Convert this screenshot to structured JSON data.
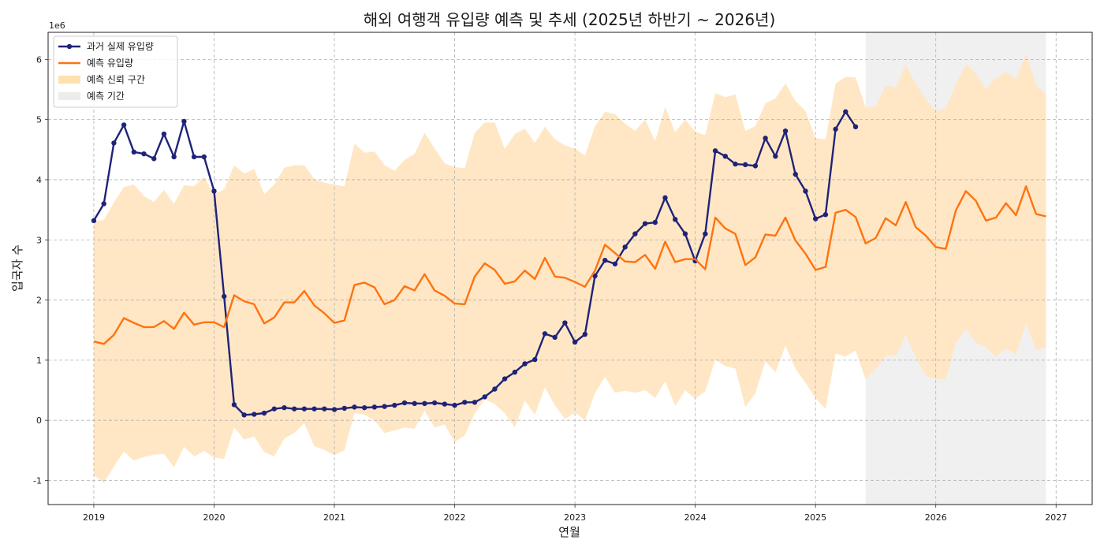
{
  "chart_data": {
    "type": "line",
    "title": "해외 여행객 유입량 예측 및 추세 (2025년 하반기 ~ 2026년)",
    "xlabel": "연월",
    "ylabel": "입국자 수",
    "y_multiplier": "1e6",
    "ylim": [
      -1.4,
      6.45
    ],
    "xlim": [
      2018.62,
      2027.3
    ],
    "y_ticks": [
      -1,
      0,
      1,
      2,
      3,
      4,
      5,
      6
    ],
    "y_tick_labels": [
      "-1",
      "0",
      "1",
      "2",
      "3",
      "4",
      "5",
      "6"
    ],
    "x_ticks": [
      2019,
      2020,
      2021,
      2022,
      2023,
      2024,
      2025,
      2026,
      2027
    ],
    "x_tick_labels": [
      "2019",
      "2020",
      "2021",
      "2022",
      "2023",
      "2024",
      "2025",
      "2026",
      "2027"
    ],
    "grid": true,
    "legend_position": "top-left",
    "legend": [
      "과거 실제 유입량",
      "예측 유입량",
      "예측 신뢰 구간",
      "예측 기간"
    ],
    "forecast_period": [
      "2025-06",
      "2026-12"
    ],
    "x_start": "2019-01",
    "series": [
      {
        "name": "과거 실제 유입량",
        "color": "#1f2378",
        "values": [
          3.32,
          3.6,
          4.61,
          4.91,
          4.46,
          4.43,
          4.35,
          4.76,
          4.38,
          4.97,
          4.38,
          4.38,
          3.81,
          2.06,
          0.26,
          0.09,
          0.1,
          0.12,
          0.19,
          0.21,
          0.19,
          0.19,
          0.19,
          0.19,
          0.18,
          0.2,
          0.22,
          0.21,
          0.22,
          0.23,
          0.25,
          0.29,
          0.28,
          0.28,
          0.29,
          0.27,
          0.25,
          0.3,
          0.3,
          0.39,
          0.52,
          0.69,
          0.8,
          0.94,
          1.01,
          1.44,
          1.38,
          1.62,
          1.3,
          1.43,
          2.4,
          2.66,
          2.6,
          2.88,
          3.1,
          3.27,
          3.29,
          3.7,
          3.34,
          3.1,
          2.65,
          3.1,
          4.48,
          4.39,
          4.26,
          4.25,
          4.23,
          4.69,
          4.39,
          4.81,
          4.09,
          3.81,
          3.35,
          3.42,
          4.84,
          5.13,
          4.88
        ]
      },
      {
        "name": "예측 유입량",
        "color": "#ff7310",
        "values": [
          1.31,
          1.27,
          1.42,
          1.7,
          1.62,
          1.55,
          1.55,
          1.65,
          1.52,
          1.79,
          1.59,
          1.63,
          1.63,
          1.55,
          2.08,
          1.98,
          1.93,
          1.61,
          1.71,
          1.96,
          1.96,
          2.15,
          1.91,
          1.78,
          1.62,
          1.66,
          2.25,
          2.29,
          2.21,
          1.93,
          2.0,
          2.23,
          2.16,
          2.43,
          2.16,
          2.07,
          1.94,
          1.93,
          2.39,
          2.61,
          2.5,
          2.27,
          2.31,
          2.49,
          2.35,
          2.7,
          2.39,
          2.37,
          2.3,
          2.22,
          2.49,
          2.92,
          2.78,
          2.64,
          2.63,
          2.75,
          2.52,
          2.97,
          2.63,
          2.68,
          2.68,
          2.51,
          3.37,
          3.19,
          3.1,
          2.58,
          2.71,
          3.09,
          3.07,
          3.37,
          2.99,
          2.77,
          2.5,
          2.55,
          3.45,
          3.5,
          3.38,
          2.94,
          3.03,
          3.36,
          3.24,
          3.63,
          3.21,
          3.07,
          2.88,
          2.85,
          3.49,
          3.81,
          3.65,
          3.32,
          3.37,
          3.61,
          3.41,
          3.89,
          3.43,
          3.39
        ]
      }
    ],
    "confidence_band": {
      "name": "예측 신뢰 구간",
      "color": "#ffe6c2",
      "upper": [
        3.31,
        3.33,
        3.62,
        3.88,
        3.92,
        3.73,
        3.63,
        3.83,
        3.6,
        3.91,
        3.89,
        4.05,
        3.76,
        3.84,
        4.24,
        4.1,
        4.18,
        3.76,
        3.92,
        4.2,
        4.24,
        4.24,
        4.01,
        3.95,
        3.92,
        3.89,
        4.6,
        4.45,
        4.47,
        4.24,
        4.15,
        4.33,
        4.43,
        4.78,
        4.52,
        4.27,
        4.21,
        4.19,
        4.78,
        4.95,
        4.95,
        4.51,
        4.76,
        4.85,
        4.61,
        4.88,
        4.67,
        4.57,
        4.52,
        4.4,
        4.89,
        5.13,
        5.09,
        4.93,
        4.81,
        5.0,
        4.64,
        5.21,
        4.79,
        5.0,
        4.8,
        4.74,
        5.44,
        5.37,
        5.42,
        4.81,
        4.89,
        5.27,
        5.35,
        5.6,
        5.31,
        5.14,
        4.69,
        4.67,
        5.6,
        5.71,
        5.7,
        5.2,
        5.21,
        5.57,
        5.53,
        5.92,
        5.59,
        5.34,
        5.14,
        5.19,
        5.58,
        5.92,
        5.77,
        5.5,
        5.69,
        5.79,
        5.67,
        6.09,
        5.58,
        5.42
      ],
      "lower": [
        -0.91,
        -1.04,
        -0.77,
        -0.52,
        -0.67,
        -0.61,
        -0.57,
        -0.56,
        -0.78,
        -0.44,
        -0.6,
        -0.51,
        -0.62,
        -0.64,
        -0.12,
        -0.32,
        -0.27,
        -0.53,
        -0.6,
        -0.3,
        -0.21,
        -0.05,
        -0.43,
        -0.49,
        -0.58,
        -0.5,
        0.12,
        0.09,
        0.0,
        -0.21,
        -0.17,
        -0.12,
        -0.14,
        0.16,
        -0.12,
        -0.07,
        -0.36,
        -0.25,
        0.11,
        0.35,
        0.27,
        0.12,
        -0.12,
        0.33,
        0.09,
        0.55,
        0.25,
        0.02,
        0.13,
        0.0,
        0.45,
        0.72,
        0.46,
        0.49,
        0.46,
        0.5,
        0.37,
        0.65,
        0.24,
        0.5,
        0.36,
        0.48,
        1.01,
        0.9,
        0.86,
        0.22,
        0.45,
        0.98,
        0.8,
        1.24,
        0.86,
        0.62,
        0.37,
        0.19,
        1.11,
        1.06,
        1.16,
        0.68,
        0.85,
        1.08,
        1.07,
        1.42,
        1.05,
        0.74,
        0.69,
        0.67,
        1.29,
        1.52,
        1.29,
        1.22,
        1.06,
        1.19,
        1.1,
        1.61,
        1.17,
        1.21
      ]
    },
    "forecast_shade_color": "#f0f0f0"
  }
}
